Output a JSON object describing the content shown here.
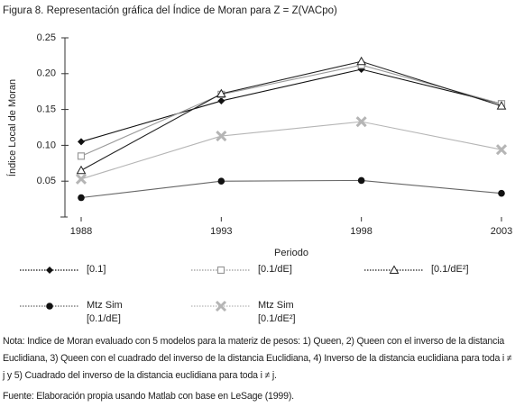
{
  "chart_data": {
    "type": "line",
    "title": "Figura 8. Representación gráfica del Índice de Moran para Z = Z(VACpo)",
    "y_label": "Índice Local de Moran",
    "x_label": "Periodo",
    "categories": [
      "1988",
      "1993",
      "1998",
      "2003"
    ],
    "ylim": [
      0,
      0.25
    ],
    "yticks": [
      0.05,
      {
        "value": 0.1,
        "label": "0.10"
      },
      0.15,
      {
        "value": 0.2,
        "label": "0.20"
      },
      0.25
    ],
    "series": [
      {
        "name": "[0.1]",
        "color": "#111111",
        "marker": "diamond",
        "values": [
          0.105,
          0.162,
          0.206,
          0.158
        ]
      },
      {
        "name": "[0.1/dE]",
        "color": "#999999",
        "marker": "square",
        "values": [
          0.085,
          0.171,
          0.212,
          0.158
        ]
      },
      {
        "name": "[0.1/dE²]",
        "color": "#222222",
        "marker": "triangle",
        "values": [
          0.065,
          0.172,
          0.217,
          0.155
        ]
      },
      {
        "name": "Mtz Sim\n[0.1/dE]",
        "color": "#666666",
        "marker": "circle",
        "values": [
          0.027,
          0.05,
          0.051,
          0.033
        ]
      },
      {
        "name": "Mtz Sim\n[0.1/dE²]",
        "color": "#b5b5b5",
        "marker": "x",
        "values": [
          0.053,
          0.113,
          0.133,
          0.094
        ]
      }
    ],
    "note": "Nota: Indice de Moran evaluado con 5 modelos para la materiz de pesos: 1) Queen, 2) Queen con el inverso de la distancia Euclidiana, 3) Queen con el cuadrado del inverso de la distancia Euclidiana, 4) Inverso de la distancia euclidiana para toda i ≠ j y 5) Cuadrado del inverso de la distancia euclidiana para toda i ≠ j.",
    "source": "Fuente:  Elaboración propia usando Matlab con base en LeSage (1999)."
  }
}
